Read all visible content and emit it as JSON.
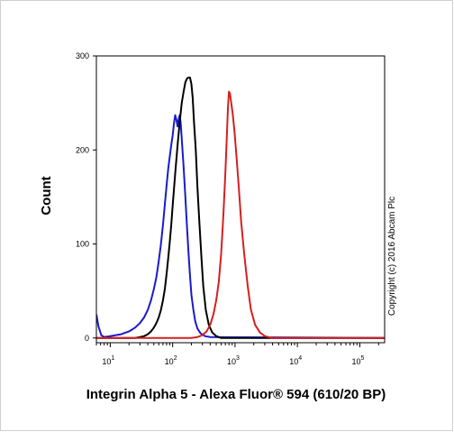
{
  "chart_data": {
    "type": "line",
    "title": "",
    "xlabel": "Integrin Alpha 5 - Alexa Fluor® 594 (610/20 BP)",
    "ylabel": "Count",
    "x_scale": "log",
    "xlim": [
      6,
      250000
    ],
    "ylim": [
      -5,
      300
    ],
    "y_ticks": [
      0,
      100,
      200,
      300
    ],
    "x_ticks": [
      10,
      100,
      1000,
      10000,
      100000
    ],
    "x_tick_labels": [
      {
        "base": "10",
        "exp": "1"
      },
      {
        "base": "10",
        "exp": "2"
      },
      {
        "base": "10",
        "exp": "3"
      },
      {
        "base": "10",
        "exp": "4"
      },
      {
        "base": "10",
        "exp": "5"
      }
    ],
    "grid": false,
    "annotation": "Copyright (c) 2016 Abcam Plc",
    "series": [
      {
        "color": "#1a1acc",
        "points": [
          [
            6,
            25
          ],
          [
            6.5,
            12
          ],
          [
            7.2,
            3
          ],
          [
            8,
            1
          ],
          [
            10,
            2
          ],
          [
            15,
            4
          ],
          [
            20,
            7
          ],
          [
            25,
            11
          ],
          [
            30,
            16
          ],
          [
            35,
            22
          ],
          [
            40,
            30
          ],
          [
            45,
            40
          ],
          [
            50,
            52
          ],
          [
            55,
            65
          ],
          [
            60,
            82
          ],
          [
            65,
            100
          ],
          [
            70,
            120
          ],
          [
            75,
            142
          ],
          [
            80,
            162
          ],
          [
            85,
            180
          ],
          [
            90,
            193
          ],
          [
            95,
            205
          ],
          [
            100,
            215
          ],
          [
            105,
            228
          ],
          [
            110,
            237
          ],
          [
            115,
            232
          ],
          [
            120,
            225
          ],
          [
            125,
            233
          ],
          [
            130,
            237
          ],
          [
            135,
            228
          ],
          [
            140,
            212
          ],
          [
            150,
            182
          ],
          [
            160,
            150
          ],
          [
            170,
            118
          ],
          [
            180,
            90
          ],
          [
            190,
            66
          ],
          [
            200,
            46
          ],
          [
            215,
            30
          ],
          [
            230,
            18
          ],
          [
            250,
            10
          ],
          [
            280,
            5
          ],
          [
            330,
            2
          ],
          [
            400,
            1
          ],
          [
            250000,
            0
          ]
        ]
      },
      {
        "color": "#000000",
        "points": [
          [
            6,
            0
          ],
          [
            25,
            0
          ],
          [
            30,
            1
          ],
          [
            35,
            2
          ],
          [
            40,
            4
          ],
          [
            45,
            7
          ],
          [
            50,
            11
          ],
          [
            55,
            16
          ],
          [
            60,
            22
          ],
          [
            65,
            30
          ],
          [
            70,
            40
          ],
          [
            75,
            52
          ],
          [
            80,
            68
          ],
          [
            85,
            85
          ],
          [
            90,
            102
          ],
          [
            95,
            120
          ],
          [
            100,
            140
          ],
          [
            110,
            175
          ],
          [
            120,
            205
          ],
          [
            130,
            230
          ],
          [
            140,
            250
          ],
          [
            150,
            262
          ],
          [
            160,
            272
          ],
          [
            170,
            276
          ],
          [
            180,
            277
          ],
          [
            190,
            277
          ],
          [
            200,
            270
          ],
          [
            210,
            255
          ],
          [
            220,
            230
          ],
          [
            235,
            200
          ],
          [
            250,
            160
          ],
          [
            270,
            120
          ],
          [
            290,
            85
          ],
          [
            310,
            55
          ],
          [
            340,
            30
          ],
          [
            380,
            14
          ],
          [
            430,
            6
          ],
          [
            500,
            2
          ],
          [
            600,
            0
          ],
          [
            250000,
            0
          ]
        ]
      },
      {
        "color": "#d42020",
        "points": [
          [
            6,
            0
          ],
          [
            200,
            0
          ],
          [
            250,
            1
          ],
          [
            300,
            3
          ],
          [
            350,
            7
          ],
          [
            400,
            14
          ],
          [
            450,
            25
          ],
          [
            500,
            40
          ],
          [
            550,
            60
          ],
          [
            600,
            90
          ],
          [
            650,
            130
          ],
          [
            700,
            175
          ],
          [
            740,
            215
          ],
          [
            770,
            245
          ],
          [
            800,
            262
          ],
          [
            830,
            260
          ],
          [
            870,
            250
          ],
          [
            920,
            238
          ],
          [
            980,
            220
          ],
          [
            1050,
            195
          ],
          [
            1150,
            160
          ],
          [
            1250,
            125
          ],
          [
            1400,
            90
          ],
          [
            1600,
            55
          ],
          [
            1800,
            30
          ],
          [
            2100,
            14
          ],
          [
            2500,
            6
          ],
          [
            3000,
            2
          ],
          [
            4000,
            0
          ],
          [
            250000,
            0
          ]
        ]
      }
    ]
  }
}
